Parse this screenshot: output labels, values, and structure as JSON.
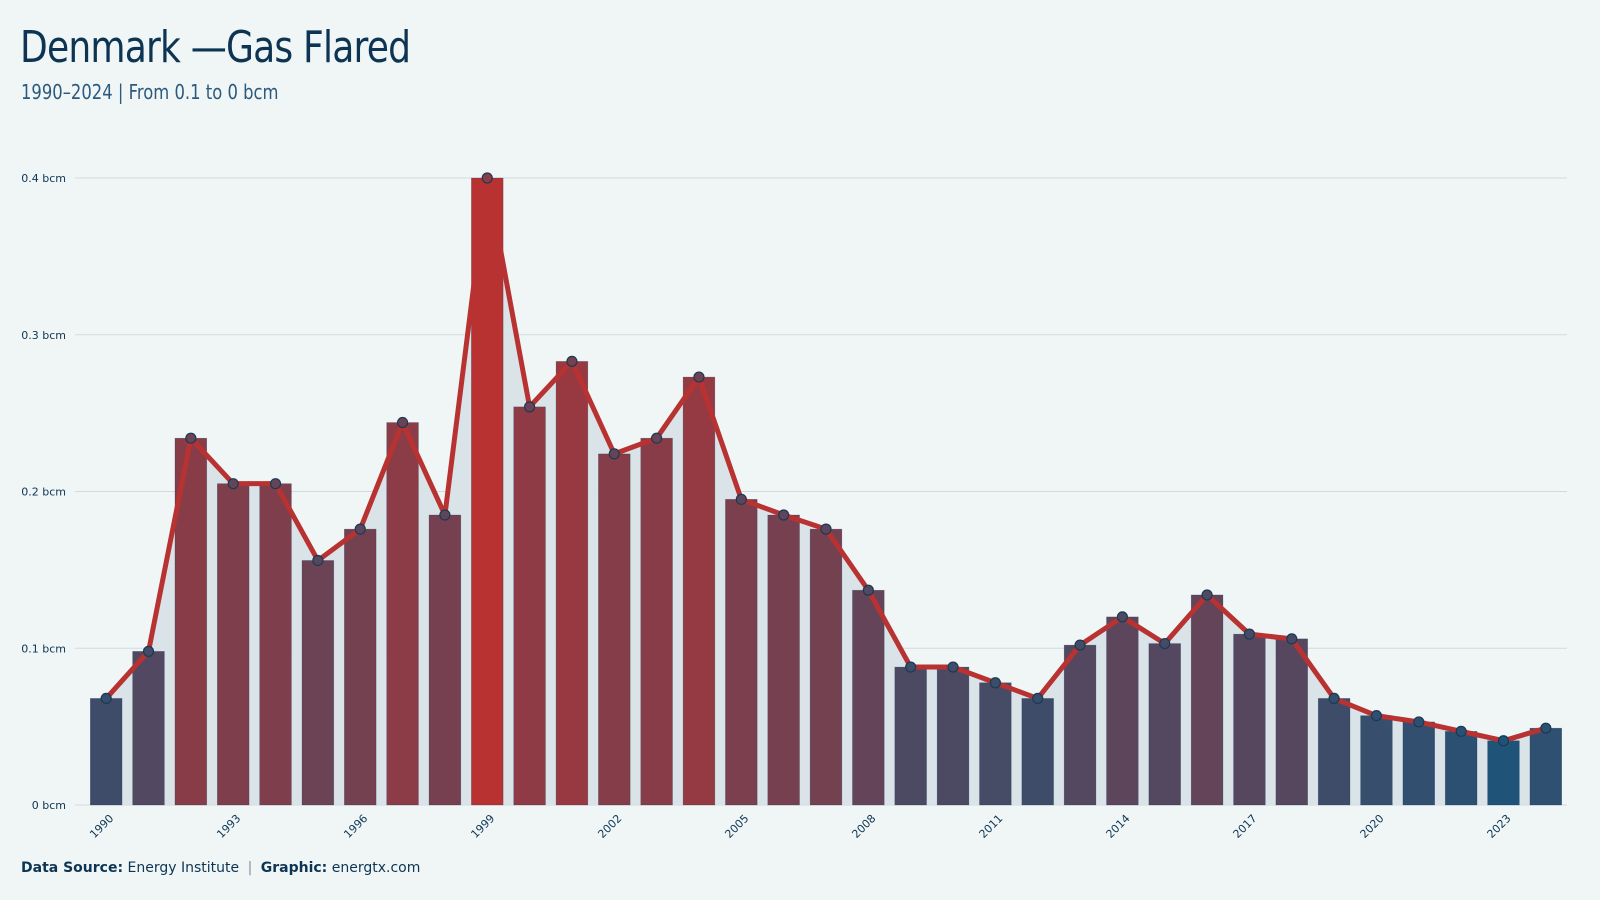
{
  "header": {
    "title": "Denmark —Gas Flared",
    "subtitle": "1990–2024 | From 0.1 to 0 bcm"
  },
  "footer": {
    "source_label": "Data Source:",
    "source_value": "Energy Institute",
    "separator": "|",
    "graphic_label": "Graphic:",
    "graphic_value": "energtx.com"
  },
  "colors": {
    "high": "#b83232",
    "low": "#1f5378",
    "line": "#b83232",
    "area": "#d7e2e7",
    "grid": "#cfdadf",
    "background": "#f0f6f6"
  },
  "chart_data": {
    "type": "bar",
    "unit": "bcm",
    "x": [
      1990,
      1991,
      1992,
      1993,
      1994,
      1995,
      1996,
      1997,
      1998,
      1999,
      2000,
      2001,
      2002,
      2003,
      2004,
      2005,
      2006,
      2007,
      2008,
      2009,
      2010,
      2011,
      2012,
      2013,
      2014,
      2015,
      2016,
      2017,
      2018,
      2019,
      2020,
      2021,
      2022,
      2023,
      2024
    ],
    "values": [
      0.068,
      0.098,
      0.234,
      0.205,
      0.205,
      0.156,
      0.176,
      0.244,
      0.185,
      0.4,
      0.254,
      0.283,
      0.224,
      0.234,
      0.273,
      0.195,
      0.185,
      0.176,
      0.137,
      0.088,
      0.088,
      0.078,
      0.068,
      0.102,
      0.12,
      0.103,
      0.134,
      0.109,
      0.106,
      0.068,
      0.057,
      0.053,
      0.047,
      0.041,
      0.049
    ],
    "x_tick_labels": [
      "1990",
      "1993",
      "1996",
      "1999",
      "2002",
      "2005",
      "2008",
      "2011",
      "2014",
      "2017",
      "2020",
      "2023"
    ],
    "y_tick_values": [
      0,
      0.1,
      0.2,
      0.3,
      0.4
    ],
    "y_tick_labels": [
      "0 bcm",
      "0.1 bcm",
      "0.2 bcm",
      "0.3 bcm",
      "0.4 bcm"
    ],
    "ylim": [
      0,
      0.4
    ],
    "grid": true,
    "overlay": "line with markers and shaded area"
  }
}
